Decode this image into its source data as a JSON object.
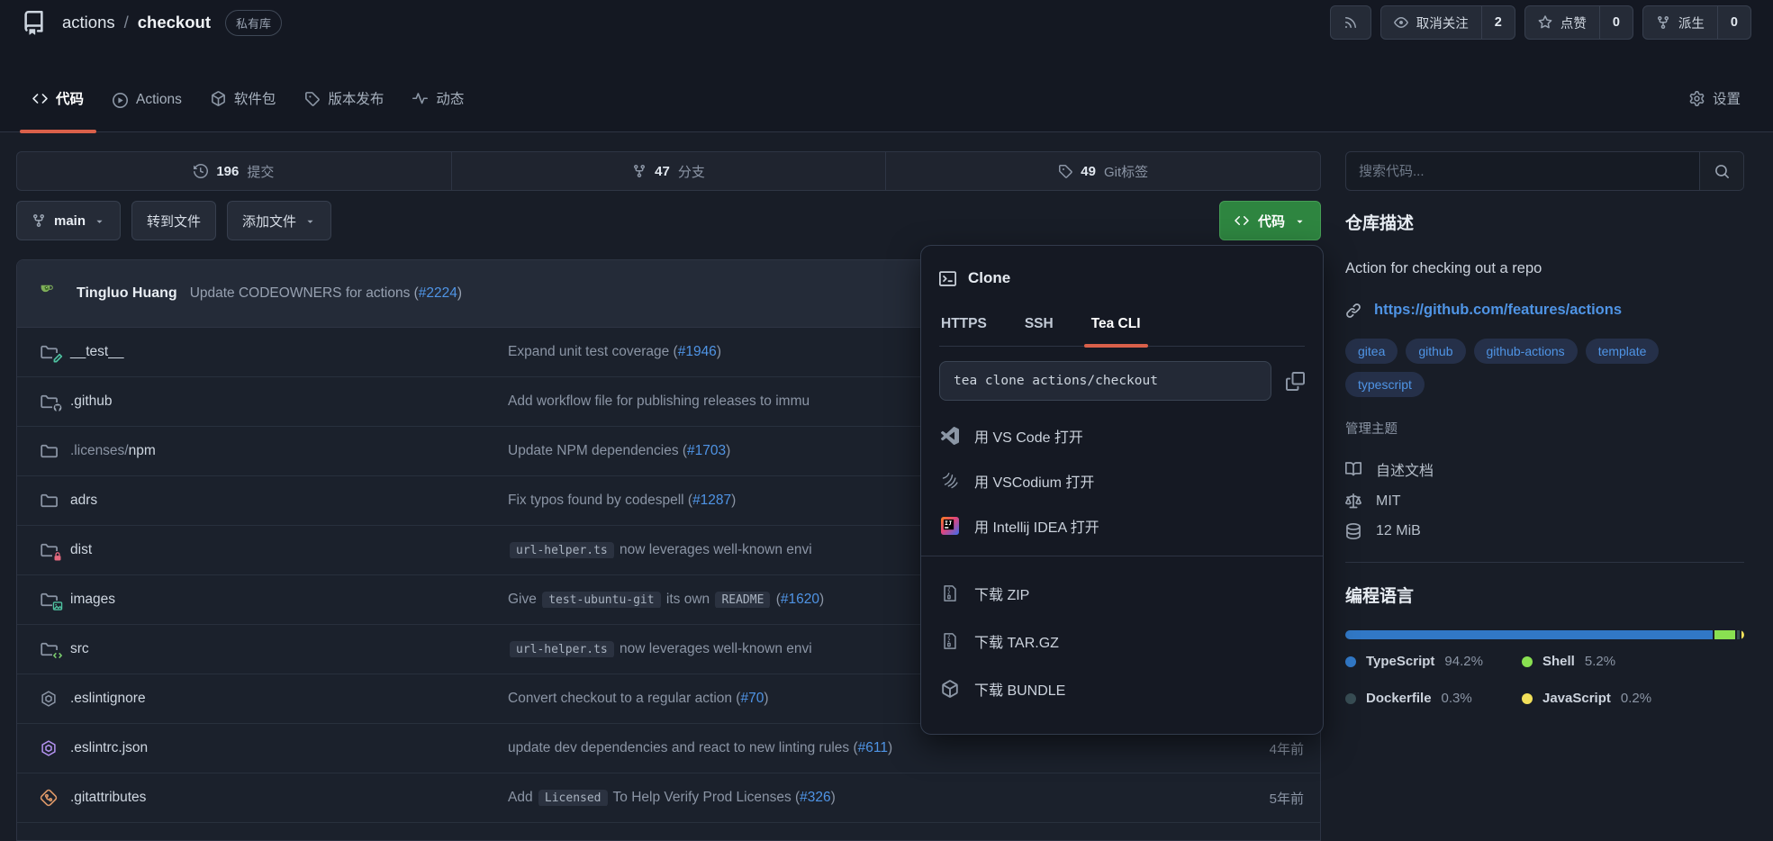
{
  "header": {
    "owner": "actions",
    "separator": "/",
    "repo": "checkout",
    "visibility_badge": "私有库",
    "buttons": [
      {
        "name": "rss",
        "icon": "rss",
        "label": "",
        "count": ""
      },
      {
        "name": "unwatch",
        "icon": "eye",
        "label": "取消关注",
        "count": "2"
      },
      {
        "name": "star",
        "icon": "star",
        "label": "点赞",
        "count": "0"
      },
      {
        "name": "fork",
        "icon": "fork",
        "label": "派生",
        "count": "0"
      }
    ]
  },
  "tabs": {
    "items": [
      {
        "name": "code",
        "icon": "code",
        "label": "代码",
        "active": true
      },
      {
        "name": "actions",
        "icon": "play",
        "label": "Actions",
        "active": false
      },
      {
        "name": "packages",
        "icon": "package",
        "label": "软件包",
        "active": false
      },
      {
        "name": "releases",
        "icon": "tag",
        "label": "版本发布",
        "active": false
      },
      {
        "name": "activity",
        "icon": "pulse",
        "label": "动态",
        "active": false
      }
    ],
    "settings": {
      "name": "settings",
      "icon": "gear",
      "label": "设置"
    }
  },
  "stats": {
    "items": [
      {
        "name": "commits",
        "icon": "history",
        "count": "196",
        "label": "提交"
      },
      {
        "name": "branches",
        "icon": "fork",
        "count": "47",
        "label": "分支"
      },
      {
        "name": "tags",
        "icon": "tag",
        "count": "49",
        "label": "Git标签"
      }
    ]
  },
  "code_search": {
    "placeholder": "搜索代码..."
  },
  "toolbar": {
    "branch": "main",
    "goto_file": "转到文件",
    "add_file": "添加文件",
    "code_button": "代码"
  },
  "commit_header": {
    "author": "Tingluo Huang",
    "message": [
      {
        "t": "text",
        "v": "Update CODEOWNERS for actions ("
      },
      {
        "t": "link",
        "v": "#2224"
      },
      {
        "t": "text",
        "v": ")"
      }
    ]
  },
  "files": [
    {
      "icon": "folder-test",
      "name": [
        {
          "t": "plain",
          "v": "__test__"
        }
      ],
      "message": [
        {
          "t": "text",
          "v": "Expand unit test coverage ("
        },
        {
          "t": "link",
          "v": "#1946"
        },
        {
          "t": "text",
          "v": ")"
        }
      ],
      "age": ""
    },
    {
      "icon": "folder-github",
      "name": [
        {
          "t": "plain",
          "v": ".github"
        }
      ],
      "message": [
        {
          "t": "text",
          "v": "Add workflow file for publishing releases to immu"
        }
      ],
      "age": ""
    },
    {
      "icon": "folder",
      "name": [
        {
          "t": "dim",
          "v": ".licenses/"
        },
        {
          "t": "plain",
          "v": "npm"
        }
      ],
      "message": [
        {
          "t": "text",
          "v": "Update NPM dependencies ("
        },
        {
          "t": "link",
          "v": "#1703"
        },
        {
          "t": "text",
          "v": ")"
        }
      ],
      "age": ""
    },
    {
      "icon": "folder",
      "name": [
        {
          "t": "plain",
          "v": "adrs"
        }
      ],
      "message": [
        {
          "t": "text",
          "v": "Fix typos found by codespell ("
        },
        {
          "t": "link",
          "v": "#1287"
        },
        {
          "t": "text",
          "v": ")"
        }
      ],
      "age": ""
    },
    {
      "icon": "folder-lock",
      "name": [
        {
          "t": "plain",
          "v": "dist"
        }
      ],
      "message": [
        {
          "t": "code",
          "v": "url-helper.ts"
        },
        {
          "t": "text",
          "v": " now leverages well-known envi"
        }
      ],
      "age": ""
    },
    {
      "icon": "folder-image",
      "name": [
        {
          "t": "plain",
          "v": "images"
        }
      ],
      "message": [
        {
          "t": "text",
          "v": "Give "
        },
        {
          "t": "code",
          "v": "test-ubuntu-git"
        },
        {
          "t": "text",
          "v": " its own "
        },
        {
          "t": "code",
          "v": "README"
        },
        {
          "t": "text",
          "v": " ("
        },
        {
          "t": "link",
          "v": "#1620"
        },
        {
          "t": "text",
          "v": ")"
        }
      ],
      "age": ""
    },
    {
      "icon": "folder-code",
      "name": [
        {
          "t": "plain",
          "v": "src"
        }
      ],
      "message": [
        {
          "t": "code",
          "v": "url-helper.ts"
        },
        {
          "t": "text",
          "v": " now leverages well-known envi"
        }
      ],
      "age": ""
    },
    {
      "icon": "eslint",
      "name": [
        {
          "t": "plain",
          "v": ".eslintignore"
        }
      ],
      "message": [
        {
          "t": "text",
          "v": "Convert checkout to a regular action ("
        },
        {
          "t": "link",
          "v": "#70"
        },
        {
          "t": "text",
          "v": ")"
        }
      ],
      "age": ""
    },
    {
      "icon": "eslint-purple",
      "name": [
        {
          "t": "plain",
          "v": ".eslintrc.json"
        }
      ],
      "message": [
        {
          "t": "text",
          "v": "update dev dependencies and react to new linting rules ("
        },
        {
          "t": "link",
          "v": "#611"
        },
        {
          "t": "text",
          "v": ")"
        }
      ],
      "age": "4年前"
    },
    {
      "icon": "git",
      "name": [
        {
          "t": "plain",
          "v": ".gitattributes"
        }
      ],
      "message": [
        {
          "t": "text",
          "v": "Add "
        },
        {
          "t": "code",
          "v": "Licensed"
        },
        {
          "t": "text",
          "v": " To Help Verify Prod Licenses ("
        },
        {
          "t": "link",
          "v": "#326"
        },
        {
          "t": "text",
          "v": ")"
        }
      ],
      "age": "5年前"
    }
  ],
  "clone_dropdown": {
    "title": "Clone",
    "tabs": [
      "HTTPS",
      "SSH",
      "Tea CLI"
    ],
    "active_tab": "Tea CLI",
    "command": "tea clone actions/checkout",
    "open_items": [
      {
        "name": "open-vscode",
        "icon": "vscode",
        "label": "用 VS Code 打开"
      },
      {
        "name": "open-vscodium",
        "icon": "vscodium",
        "label": "用 VSCodium 打开"
      },
      {
        "name": "open-intellij",
        "icon": "idea",
        "label": "用 Intellij IDEA 打开"
      }
    ],
    "download_items": [
      {
        "name": "download-zip",
        "icon": "zip",
        "label": "下载 ZIP"
      },
      {
        "name": "download-targz",
        "icon": "zip",
        "label": "下载 TAR.GZ"
      },
      {
        "name": "download-bundle",
        "icon": "package",
        "label": "下载 BUNDLE"
      }
    ]
  },
  "sidebar": {
    "description_title": "仓库描述",
    "description": "Action for checking out a repo",
    "website": "https://github.com/features/actions",
    "topics": [
      "gitea",
      "github",
      "github-actions",
      "template",
      "typescript"
    ],
    "manage_topics": "管理主题",
    "meta": [
      {
        "name": "readme",
        "icon": "book",
        "label": "自述文档"
      },
      {
        "name": "license",
        "icon": "law",
        "label": "MIT"
      },
      {
        "name": "size",
        "icon": "database",
        "label": "12 MiB"
      }
    ],
    "languages_title": "编程语言",
    "languages": [
      {
        "name": "TypeScript",
        "pct": "94.2%",
        "color": "#3178c6"
      },
      {
        "name": "Shell",
        "pct": "5.2%",
        "color": "#89e051"
      },
      {
        "name": "Dockerfile",
        "pct": "0.3%",
        "color": "#384d54"
      },
      {
        "name": "JavaScript",
        "pct": "0.2%",
        "color": "#f1e05a"
      }
    ]
  }
}
